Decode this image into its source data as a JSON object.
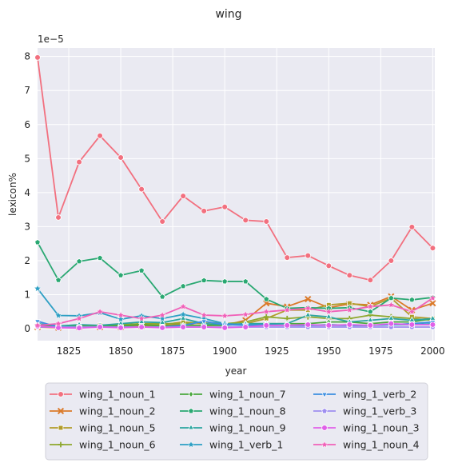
{
  "chart_data": {
    "type": "line",
    "title": "wing",
    "xlabel": "year",
    "ylabel": "lexicon%",
    "offset_label": "1e−5",
    "xlim": [
      1810,
      2001
    ],
    "ylim": [
      -0.35,
      8.25
    ],
    "x_ticks": [
      1825,
      1850,
      1875,
      1900,
      1925,
      1950,
      1975,
      2000
    ],
    "y_ticks": [
      0,
      1,
      2,
      3,
      4,
      5,
      6,
      7,
      8
    ],
    "grid": true,
    "legend_position": "bottom",
    "background": "#eaeaf2",
    "x": [
      1810,
      1820,
      1830,
      1840,
      1850,
      1860,
      1870,
      1880,
      1890,
      1900,
      1910,
      1920,
      1930,
      1940,
      1950,
      1960,
      1970,
      1980,
      1990,
      2000
    ],
    "series": [
      {
        "name": "wing_1_noun_1",
        "color": "#f2707f",
        "marker": "circle",
        "values": [
          7.97,
          3.27,
          4.9,
          5.67,
          5.03,
          4.1,
          3.15,
          3.9,
          3.46,
          3.58,
          3.19,
          3.15,
          2.09,
          2.15,
          1.85,
          1.57,
          1.43,
          2.0,
          2.99,
          2.37
        ]
      },
      {
        "name": "wing_1_noun_2",
        "color": "#db7a2a",
        "marker": "x",
        "values": [
          0.05,
          0.03,
          0.05,
          0.05,
          0.05,
          0.08,
          0.1,
          0.12,
          0.1,
          0.1,
          0.25,
          0.75,
          0.65,
          0.87,
          0.62,
          0.73,
          0.7,
          0.95,
          0.55,
          0.75
        ]
      },
      {
        "name": "wing_1_noun_5",
        "color": "#b29c2a",
        "marker": "square",
        "values": [
          0.08,
          0.05,
          0.08,
          0.1,
          0.1,
          0.15,
          0.12,
          0.2,
          0.15,
          0.12,
          0.15,
          0.3,
          0.55,
          0.55,
          0.7,
          0.75,
          0.65,
          0.9,
          0.35,
          0.3
        ]
      },
      {
        "name": "wing_1_noun_6",
        "color": "#8ea82e",
        "marker": "plus",
        "values": [
          0.1,
          0.08,
          0.1,
          0.1,
          0.12,
          0.15,
          0.15,
          0.15,
          0.2,
          0.15,
          0.2,
          0.35,
          0.3,
          0.35,
          0.3,
          0.3,
          0.4,
          0.35,
          0.3,
          0.25
        ]
      },
      {
        "name": "wing_1_noun_7",
        "color": "#4aa83e",
        "marker": "diamond",
        "values": [
          0.1,
          0.05,
          0.1,
          0.1,
          0.08,
          0.12,
          0.08,
          0.1,
          0.1,
          0.1,
          0.15,
          0.15,
          0.15,
          0.15,
          0.2,
          0.2,
          0.15,
          0.2,
          0.2,
          0.3
        ]
      },
      {
        "name": "wing_1_noun_8",
        "color": "#2aa872",
        "marker": "pentagon",
        "values": [
          2.54,
          1.43,
          1.98,
          2.08,
          1.57,
          1.71,
          0.94,
          1.25,
          1.42,
          1.39,
          1.39,
          0.87,
          0.6,
          0.62,
          0.6,
          0.62,
          0.5,
          0.9,
          0.85,
          0.92
        ]
      },
      {
        "name": "wing_1_noun_9",
        "color": "#2ba5a0",
        "marker": "triangle-up",
        "values": [
          0.15,
          0.08,
          0.12,
          0.1,
          0.15,
          0.2,
          0.18,
          0.3,
          0.15,
          0.12,
          0.15,
          0.15,
          0.15,
          0.4,
          0.35,
          0.2,
          0.25,
          0.3,
          0.25,
          0.3
        ]
      },
      {
        "name": "wing_1_verb_1",
        "color": "#2d9fc4",
        "marker": "star",
        "values": [
          1.18,
          0.39,
          0.38,
          0.47,
          0.28,
          0.38,
          0.3,
          0.42,
          0.3,
          0.15,
          0.12,
          0.12,
          0.1,
          0.1,
          0.12,
          0.1,
          0.1,
          0.12,
          0.12,
          0.15
        ]
      },
      {
        "name": "wing_1_verb_2",
        "color": "#3d8ee0",
        "marker": "triangle-down",
        "values": [
          0.22,
          0.05,
          0.05,
          0.05,
          0.05,
          0.05,
          0.05,
          0.1,
          0.22,
          0.12,
          0.1,
          0.1,
          0.1,
          0.1,
          0.1,
          0.1,
          0.1,
          0.12,
          0.15,
          0.2
        ]
      },
      {
        "name": "wing_1_verb_3",
        "color": "#9e8ef0",
        "marker": "pentagon",
        "values": [
          0.05,
          0.05,
          0.05,
          0.05,
          0.05,
          0.05,
          0.05,
          0.05,
          0.05,
          0.05,
          0.05,
          0.05,
          0.05,
          0.05,
          0.05,
          0.05,
          0.05,
          0.05,
          0.05,
          0.05
        ]
      },
      {
        "name": "wing_1_noun_3",
        "color": "#e060e8",
        "marker": "circle",
        "values": [
          0.08,
          0.03,
          0.02,
          0.05,
          0.03,
          0.05,
          0.03,
          0.05,
          0.05,
          0.03,
          0.05,
          0.1,
          0.1,
          0.12,
          0.1,
          0.12,
          0.1,
          0.15,
          0.12,
          0.12
        ]
      },
      {
        "name": "wing_1_noun_4",
        "color": "#f060b8",
        "marker": "star",
        "values": [
          0.1,
          0.15,
          0.3,
          0.5,
          0.4,
          0.3,
          0.4,
          0.65,
          0.4,
          0.38,
          0.42,
          0.5,
          0.55,
          0.6,
          0.5,
          0.55,
          0.65,
          0.7,
          0.5,
          0.9
        ]
      }
    ]
  }
}
